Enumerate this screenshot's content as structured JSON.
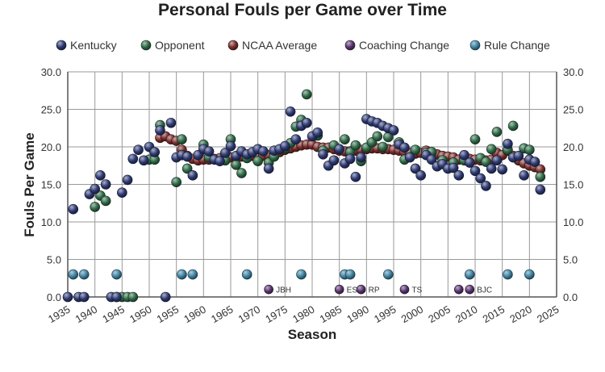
{
  "colors": {
    "kentucky": "#2e3a73",
    "opponent": "#2f6a47",
    "ncaa": "#7a2e2c",
    "coaching": "#5a3570",
    "rule": "#3f83a2",
    "grid": "#999999"
  },
  "chart_data": {
    "type": "scatter",
    "title": "Personal Fouls per Game over Time",
    "xlabel": "Season",
    "ylabel": "Fouls Per Game",
    "xlim": [
      1935,
      2025
    ],
    "ylim": [
      0,
      30
    ],
    "xticks": [
      1935,
      1940,
      1945,
      1950,
      1955,
      1960,
      1965,
      1970,
      1975,
      1980,
      1985,
      1990,
      1995,
      2000,
      2005,
      2010,
      2015,
      2020,
      2025
    ],
    "yticks": [
      0,
      5,
      10,
      15,
      20,
      25,
      30
    ],
    "ytick_labels": [
      "0.0",
      "5.0",
      "10.0",
      "15.0",
      "20.0",
      "25.0",
      "30.0"
    ],
    "right_axis": true,
    "grid": true,
    "legend_position": "top",
    "legend": [
      {
        "key": "ncaa",
        "label": "NCAA Average"
      },
      {
        "key": "opponent",
        "label": "Opponent"
      },
      {
        "key": "kentucky",
        "label": "Kentucky"
      },
      {
        "key": "coaching",
        "label": "Coaching Change"
      },
      {
        "key": "rule",
        "label": "Rule Change"
      }
    ],
    "series": [
      {
        "key": "ncaa",
        "name": "NCAA Average",
        "points": [
          [
            1952,
            21.2
          ],
          [
            1953,
            21.4
          ],
          [
            1954,
            21.0
          ],
          [
            1955,
            20.8
          ],
          [
            1956,
            19.6
          ],
          [
            1957,
            18.8
          ],
          [
            1958,
            18.4
          ],
          [
            1959,
            18.2
          ],
          [
            1960,
            18.3
          ],
          [
            1961,
            18.3
          ],
          [
            1962,
            18.4
          ],
          [
            1963,
            18.5
          ],
          [
            1964,
            18.6
          ],
          [
            1965,
            18.6
          ],
          [
            1966,
            18.6
          ],
          [
            1967,
            18.7
          ],
          [
            1968,
            18.7
          ],
          [
            1969,
            18.8
          ],
          [
            1970,
            18.8
          ],
          [
            1971,
            18.8
          ],
          [
            1972,
            18.9
          ],
          [
            1973,
            19.1
          ],
          [
            1974,
            19.3
          ],
          [
            1975,
            19.6
          ],
          [
            1976,
            19.8
          ],
          [
            1977,
            20.0
          ],
          [
            1978,
            20.2
          ],
          [
            1979,
            20.3
          ],
          [
            1980,
            20.3
          ],
          [
            1981,
            20.0
          ],
          [
            1982,
            19.9
          ],
          [
            1983,
            19.9
          ],
          [
            1984,
            19.7
          ],
          [
            1985,
            19.5
          ],
          [
            1986,
            19.4
          ],
          [
            1987,
            19.4
          ],
          [
            1988,
            19.5
          ],
          [
            1989,
            19.6
          ],
          [
            1990,
            19.7
          ],
          [
            1991,
            19.8
          ],
          [
            1992,
            19.8
          ],
          [
            1993,
            19.7
          ],
          [
            1994,
            19.7
          ],
          [
            1995,
            19.6
          ],
          [
            1996,
            19.5
          ],
          [
            1997,
            19.3
          ],
          [
            1998,
            19.2
          ],
          [
            1999,
            19.1
          ],
          [
            2000,
            19.2
          ],
          [
            2001,
            19.5
          ],
          [
            2002,
            19.3
          ],
          [
            2003,
            19.0
          ],
          [
            2004,
            18.8
          ],
          [
            2005,
            18.7
          ],
          [
            2006,
            18.6
          ],
          [
            2007,
            18.3
          ],
          [
            2008,
            18.4
          ],
          [
            2009,
            18.4
          ],
          [
            2010,
            18.3
          ],
          [
            2011,
            18.2
          ],
          [
            2012,
            18.2
          ],
          [
            2013,
            18.3
          ],
          [
            2014,
            19.2
          ],
          [
            2015,
            18.9
          ],
          [
            2016,
            19.5
          ],
          [
            2017,
            18.8
          ],
          [
            2018,
            18.2
          ],
          [
            2019,
            17.8
          ],
          [
            2020,
            17.5
          ],
          [
            2021,
            17.3
          ],
          [
            2022,
            17.0
          ]
        ]
      },
      {
        "key": "opponent",
        "name": "Opponent",
        "points": [
          [
            1940,
            12.0
          ],
          [
            1941,
            13.5
          ],
          [
            1942,
            12.8
          ],
          [
            1944,
            0.0
          ],
          [
            1945,
            0.0
          ],
          [
            1946,
            0.0
          ],
          [
            1947,
            0.0
          ],
          [
            1950,
            18.3
          ],
          [
            1951,
            18.3
          ],
          [
            1952,
            22.9
          ],
          [
            1955,
            15.3
          ],
          [
            1956,
            21.0
          ],
          [
            1957,
            17.1
          ],
          [
            1960,
            20.3
          ],
          [
            1961,
            18.6
          ],
          [
            1964,
            18.2
          ],
          [
            1965,
            21.0
          ],
          [
            1966,
            17.6
          ],
          [
            1967,
            16.5
          ],
          [
            1968,
            18.5
          ],
          [
            1970,
            18.1
          ],
          [
            1972,
            17.9
          ],
          [
            1973,
            18.7
          ],
          [
            1975,
            19.8
          ],
          [
            1976,
            20.5
          ],
          [
            1977,
            22.7
          ],
          [
            1978,
            23.6
          ],
          [
            1979,
            27.0
          ],
          [
            1981,
            21.5
          ],
          [
            1982,
            19.5
          ],
          [
            1984,
            20.2
          ],
          [
            1986,
            21.0
          ],
          [
            1987,
            19.3
          ],
          [
            1988,
            20.2
          ],
          [
            1989,
            18.1
          ],
          [
            1990,
            19.9
          ],
          [
            1991,
            20.6
          ],
          [
            1992,
            21.4
          ],
          [
            1993,
            20.0
          ],
          [
            1994,
            21.3
          ],
          [
            1996,
            20.6
          ],
          [
            1997,
            18.3
          ],
          [
            1999,
            19.6
          ],
          [
            2001,
            19.2
          ],
          [
            2002,
            19.3
          ],
          [
            2004,
            18.2
          ],
          [
            2006,
            17.9
          ],
          [
            2008,
            18.2
          ],
          [
            2010,
            21.0
          ],
          [
            2011,
            18.5
          ],
          [
            2012,
            18.0
          ],
          [
            2013,
            19.7
          ],
          [
            2014,
            22.0
          ],
          [
            2016,
            19.6
          ],
          [
            2017,
            22.8
          ],
          [
            2019,
            19.8
          ],
          [
            2020,
            19.6
          ],
          [
            2022,
            16.0
          ]
        ]
      },
      {
        "key": "kentucky",
        "name": "Kentucky",
        "points": [
          [
            1935,
            0.0
          ],
          [
            1936,
            11.7
          ],
          [
            1937,
            0.0
          ],
          [
            1938,
            0.0
          ],
          [
            1939,
            13.7
          ],
          [
            1940,
            14.4
          ],
          [
            1941,
            16.2
          ],
          [
            1942,
            15.0
          ],
          [
            1943,
            0.0
          ],
          [
            1944,
            0.0
          ],
          [
            1945,
            13.9
          ],
          [
            1946,
            15.6
          ],
          [
            1947,
            18.4
          ],
          [
            1948,
            19.6
          ],
          [
            1949,
            18.2
          ],
          [
            1950,
            20.0
          ],
          [
            1951,
            19.3
          ],
          [
            1952,
            22.2
          ],
          [
            1953,
            0.0
          ],
          [
            1954,
            23.2
          ],
          [
            1955,
            18.6
          ],
          [
            1956,
            18.9
          ],
          [
            1957,
            18.7
          ],
          [
            1958,
            16.2
          ],
          [
            1959,
            18.9
          ],
          [
            1960,
            19.7
          ],
          [
            1961,
            19.4
          ],
          [
            1962,
            18.3
          ],
          [
            1963,
            18.1
          ],
          [
            1964,
            19.2
          ],
          [
            1965,
            20.1
          ],
          [
            1966,
            18.8
          ],
          [
            1967,
            19.4
          ],
          [
            1968,
            19.0
          ],
          [
            1969,
            19.3
          ],
          [
            1970,
            19.7
          ],
          [
            1971,
            19.4
          ],
          [
            1972,
            17.1
          ],
          [
            1973,
            19.5
          ],
          [
            1974,
            19.7
          ],
          [
            1975,
            20.1
          ],
          [
            1976,
            24.7
          ],
          [
            1977,
            21.0
          ],
          [
            1978,
            22.8
          ],
          [
            1979,
            23.2
          ],
          [
            1980,
            21.4
          ],
          [
            1981,
            21.9
          ],
          [
            1982,
            19.0
          ],
          [
            1983,
            17.5
          ],
          [
            1984,
            18.2
          ],
          [
            1985,
            19.7
          ],
          [
            1986,
            17.8
          ],
          [
            1987,
            18.4
          ],
          [
            1988,
            16.0
          ],
          [
            1989,
            18.6
          ],
          [
            1990,
            23.7
          ],
          [
            1991,
            23.4
          ],
          [
            1992,
            23.2
          ],
          [
            1993,
            22.8
          ],
          [
            1994,
            22.5
          ],
          [
            1995,
            22.2
          ],
          [
            1996,
            20.3
          ],
          [
            1997,
            19.9
          ],
          [
            1998,
            18.6
          ],
          [
            1999,
            17.1
          ],
          [
            2000,
            16.2
          ],
          [
            2001,
            18.9
          ],
          [
            2002,
            18.3
          ],
          [
            2003,
            17.4
          ],
          [
            2004,
            17.7
          ],
          [
            2005,
            17.1
          ],
          [
            2006,
            17.2
          ],
          [
            2007,
            16.2
          ],
          [
            2008,
            18.9
          ],
          [
            2009,
            17.9
          ],
          [
            2010,
            16.8
          ],
          [
            2011,
            15.8
          ],
          [
            2012,
            14.8
          ],
          [
            2013,
            17.1
          ],
          [
            2014,
            18.2
          ],
          [
            2015,
            17.0
          ],
          [
            2016,
            20.4
          ],
          [
            2017,
            18.6
          ],
          [
            2018,
            18.8
          ],
          [
            2019,
            16.2
          ],
          [
            2020,
            18.3
          ],
          [
            2021,
            18.0
          ],
          [
            2022,
            14.3
          ]
        ]
      },
      {
        "key": "rule",
        "name": "Rule Change",
        "points": [
          [
            1936,
            3.0
          ],
          [
            1938,
            3.0
          ],
          [
            1944,
            3.0
          ],
          [
            1956,
            3.0
          ],
          [
            1958,
            3.0
          ],
          [
            1968,
            3.0
          ],
          [
            1978,
            3.0
          ],
          [
            1986,
            3.0
          ],
          [
            1987,
            3.0
          ],
          [
            1994,
            3.0
          ],
          [
            2009,
            3.0
          ],
          [
            2016,
            3.0
          ],
          [
            2020,
            3.0
          ]
        ]
      },
      {
        "key": "coaching",
        "name": "Coaching Change",
        "points": [
          [
            1972,
            1.0,
            "JBH"
          ],
          [
            1985,
            1.0,
            "ES"
          ],
          [
            1989,
            1.0,
            "RP"
          ],
          [
            1997,
            1.0,
            "TS"
          ],
          [
            2007,
            1.0,
            ""
          ],
          [
            2009,
            1.0,
            "BJC"
          ]
        ]
      }
    ]
  }
}
